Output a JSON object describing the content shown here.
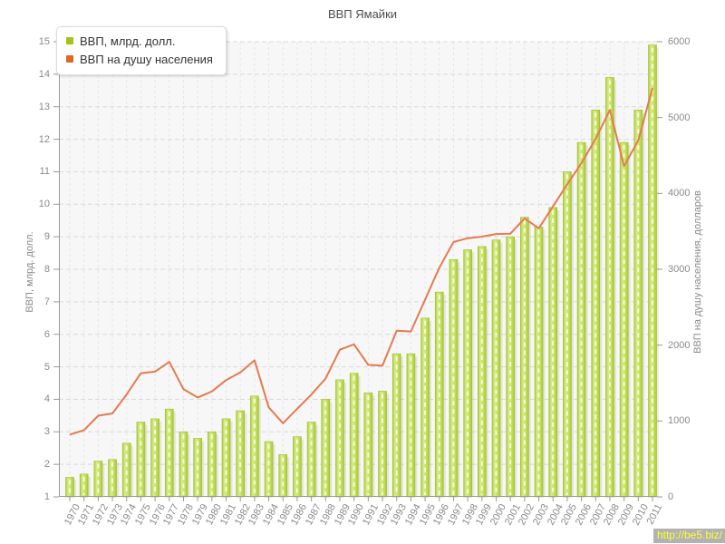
{
  "page": {
    "watermark": "http://be5.biz/"
  },
  "legend": {
    "items": [
      {
        "label": "ВВП, млрд. долл.",
        "color": "#a3c414"
      },
      {
        "label": "ВВП на душу населения",
        "color": "#dd6820"
      }
    ]
  },
  "chart_data": {
    "type": "bar+line",
    "title": "ВВП Ямайки",
    "categories": [
      "1970",
      "1971",
      "1972",
      "1973",
      "1974",
      "1975",
      "1976",
      "1977",
      "1978",
      "1979",
      "1980",
      "1981",
      "1982",
      "1983",
      "1984",
      "1985",
      "1986",
      "1987",
      "1988",
      "1989",
      "1990",
      "1991",
      "1992",
      "1993",
      "1994",
      "1995",
      "1996",
      "1997",
      "1998",
      "1999",
      "2000",
      "2001",
      "2002",
      "2003",
      "2004",
      "2005",
      "2006",
      "2007",
      "2008",
      "2009",
      "2010",
      "2011"
    ],
    "series": [
      {
        "name": "ВВП, млрд. долл.",
        "type": "bar",
        "yaxis": "left",
        "color": "#bcd94e",
        "values": [
          1.6,
          1.7,
          2.1,
          2.15,
          2.65,
          3.3,
          3.4,
          3.7,
          3.0,
          2.8,
          3.0,
          3.4,
          3.65,
          4.1,
          2.7,
          2.3,
          2.85,
          3.3,
          4.0,
          4.6,
          4.8,
          4.2,
          4.25,
          5.4,
          5.4,
          6.5,
          7.3,
          8.3,
          8.6,
          8.7,
          8.9,
          9.0,
          9.6,
          9.3,
          9.9,
          11.0,
          11.9,
          12.9,
          13.9,
          11.9,
          12.9,
          14.9
        ]
      },
      {
        "name": "ВВП на душу населения",
        "type": "line",
        "yaxis": "right",
        "color": "#e57a50",
        "values": [
          820,
          880,
          1070,
          1100,
          1350,
          1630,
          1650,
          1780,
          1420,
          1310,
          1390,
          1540,
          1640,
          1800,
          1180,
          970,
          1160,
          1350,
          1560,
          1940,
          2010,
          1740,
          1730,
          2190,
          2180,
          2600,
          3020,
          3360,
          3410,
          3430,
          3465,
          3470,
          3670,
          3540,
          3830,
          4120,
          4400,
          4720,
          5100,
          4360,
          4700,
          5390
        ]
      }
    ],
    "left_axis": {
      "title": "ВВП, млрд. долл.",
      "min": 1,
      "max": 15,
      "step": 1,
      "ticks": [
        1,
        2,
        3,
        4,
        5,
        6,
        7,
        8,
        9,
        10,
        11,
        12,
        13,
        14,
        15
      ]
    },
    "right_axis": {
      "title": "ВВП на душу населения, долларов",
      "min": 0,
      "max": 6000,
      "step": 1000,
      "ticks": [
        0,
        1000,
        2000,
        3000,
        4000,
        5000,
        6000
      ]
    },
    "grid": true,
    "legend_position": "top-left",
    "plot_background": "#f7f7f7"
  }
}
